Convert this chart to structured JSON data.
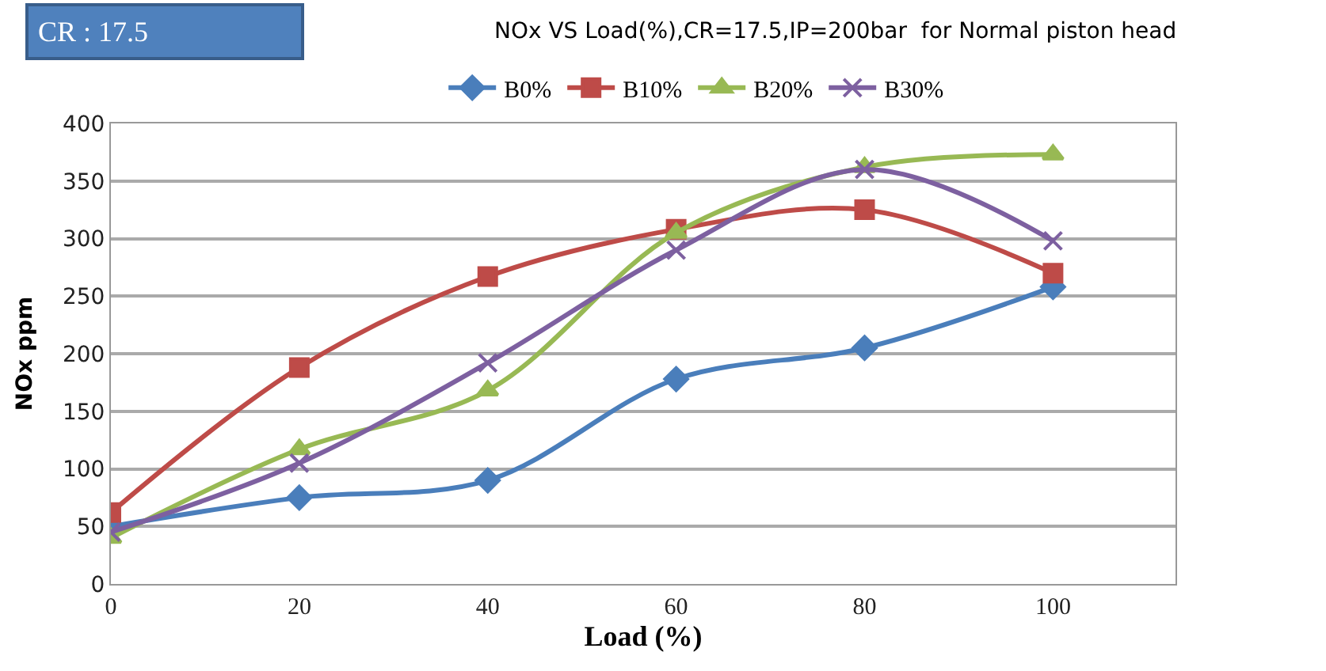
{
  "chart_data": {
    "type": "line",
    "title": "NOx VS Load(%),CR=17.5,IP=200bar  for Normal piston head",
    "annotations": [
      "CR : 17.5"
    ],
    "xlabel": "Load (%)",
    "ylabel": "NOx ppm",
    "x": [
      0,
      20,
      40,
      60,
      80,
      100
    ],
    "series": [
      {
        "name": "B0%",
        "color": "#4a7ebb",
        "marker": "diamond",
        "values": [
          50,
          75,
          90,
          178,
          205,
          258
        ]
      },
      {
        "name": "B10%",
        "color": "#be4b48",
        "marker": "square",
        "values": [
          62,
          188,
          267,
          308,
          325,
          270
        ]
      },
      {
        "name": "B20%",
        "color": "#98b954",
        "marker": "triangle",
        "values": [
          40,
          117,
          168,
          305,
          362,
          373
        ]
      },
      {
        "name": "B30%",
        "color": "#7d60a0",
        "marker": "cross",
        "values": [
          45,
          105,
          192,
          290,
          360,
          298
        ]
      }
    ],
    "xlim": [
      0,
      113
    ],
    "xticks": [
      0,
      20,
      40,
      60,
      80,
      100
    ],
    "ylim": [
      0,
      400
    ],
    "yticks": [
      0,
      50,
      100,
      150,
      200,
      250,
      300,
      350,
      400
    ],
    "grid": "y",
    "legend": "top",
    "line_style": "solid"
  }
}
